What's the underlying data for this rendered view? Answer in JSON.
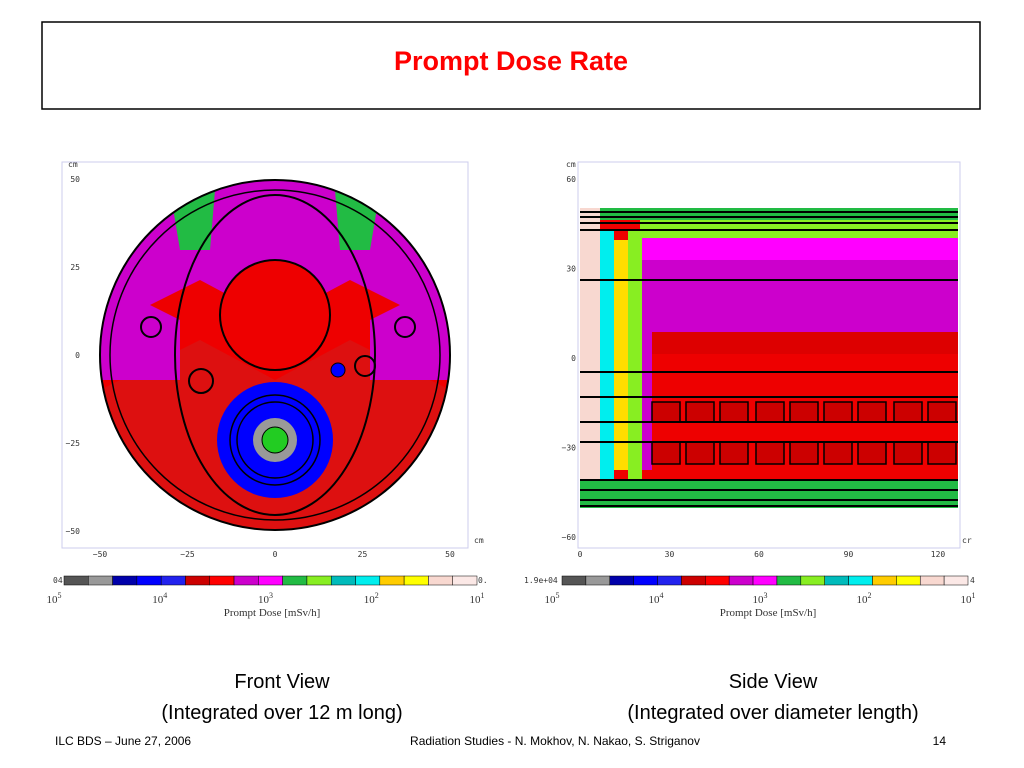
{
  "header": {
    "title": "Prompt Dose Rate"
  },
  "panels": [
    {
      "y_unit": "cm",
      "yticks": [
        "50",
        "25",
        "0",
        "−25",
        "−50"
      ],
      "x_unit": "cm",
      "xticks": [
        "−50",
        "−25",
        "0",
        "25",
        "50"
      ],
      "colorbar_left": "04",
      "colorbar_right": "0.",
      "colorbar_scale": [
        {
          "base": "10",
          "exp": "5"
        },
        {
          "base": "10",
          "exp": "4"
        },
        {
          "base": "10",
          "exp": "3"
        },
        {
          "base": "10",
          "exp": "2"
        },
        {
          "base": "10",
          "exp": "1"
        }
      ],
      "colorbar_title": "Prompt Dose [mSv/h]",
      "caption": "Front View",
      "subcaption": "(Integrated over 12 m long)"
    },
    {
      "y_unit": "cm",
      "yticks": [
        "60",
        "30",
        "0",
        "−30",
        "−60"
      ],
      "x_unit": "cr",
      "xticks": [
        "0",
        "30",
        "60",
        "90",
        "120"
      ],
      "colorbar_left": "1.9e+04",
      "colorbar_right": "4",
      "colorbar_scale": [
        {
          "base": "10",
          "exp": "5"
        },
        {
          "base": "10",
          "exp": "4"
        },
        {
          "base": "10",
          "exp": "3"
        },
        {
          "base": "10",
          "exp": "2"
        },
        {
          "base": "10",
          "exp": "1"
        }
      ],
      "colorbar_title": "Prompt Dose [mSv/h]",
      "caption": "Side View",
      "subcaption": "(Integrated over diameter length)"
    }
  ],
  "footer": {
    "left": "ILC BDS – June 27, 2006",
    "center": "Radiation Studies -  N. Mokhov, N. Nakao, S. Striganov",
    "page": "14"
  }
}
